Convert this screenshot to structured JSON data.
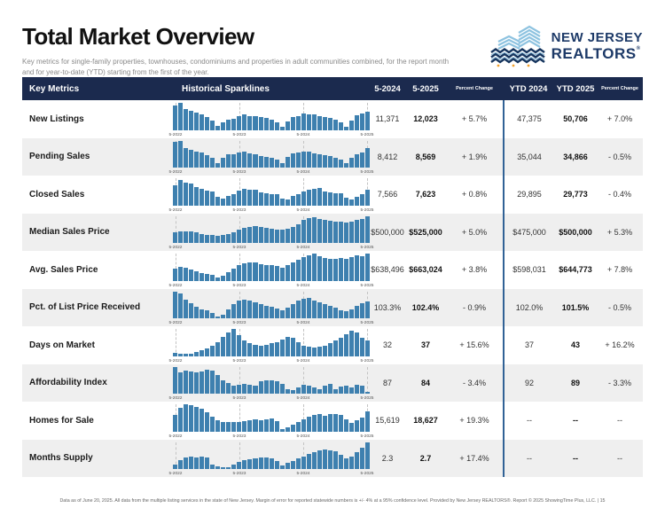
{
  "page": {
    "title": "Total Market Overview",
    "subtitle_line1": "Key metrics for single-family properties, townhouses, condominiums and properties in adult communities combined, for the report month",
    "subtitle_line2": "and for year-to-date (YTD) starting from the first of the year.",
    "footer": "Data as of June 20, 2025. All data from the multiple listing services in the state of New Jersey. Margin of error for reported statewide numbers is +/- 4% at a 95% confidence level. Provided by New Jersey REALTORS®. Report © 2025 ShowingTime Plus, LLC.  |  15"
  },
  "logo": {
    "line1": "NEW JERSEY",
    "line2": "REALTORS",
    "reg_mark": "®"
  },
  "colors": {
    "header_bg": "#1b2a4e",
    "bar_blue": "#3e80af",
    "divider_blue": "#316296",
    "row_alt": "#efefef",
    "logo_navy": "#1d3a68",
    "logo_light_blue": "#8ec3e0",
    "logo_orange": "#f2a230"
  },
  "table": {
    "headers": {
      "key_metrics": "Key Metrics",
      "sparklines": "Historical Sparklines",
      "m1": "5-2024",
      "m2": "5-2025",
      "pct1": "Percent Change",
      "y1": "YTD 2024",
      "y2": "YTD 2025",
      "pct2": "Percent Change"
    },
    "spark_axis_labels": [
      "5-2022",
      "5-2023",
      "5-2024",
      "5-2025"
    ],
    "rows": [
      {
        "metric": "New Listings",
        "m1": "11,371",
        "m2": "12,023",
        "pct1": "+ 5.7%",
        "y1": "47,375",
        "y2": "50,706",
        "pct2": "+ 7.0%",
        "spark": [
          90,
          100,
          78,
          72,
          64,
          58,
          48,
          36,
          14,
          28,
          38,
          42,
          52,
          58,
          52,
          50,
          46,
          44,
          38,
          28,
          12,
          32,
          46,
          52,
          62,
          58,
          56,
          52,
          48,
          45,
          38,
          28,
          10,
          36,
          55,
          62,
          68
        ]
      },
      {
        "metric": "Pending Sales",
        "m1": "8,412",
        "m2": "8,569",
        "pct1": "+ 1.9%",
        "y1": "35,044",
        "y2": "34,866",
        "pct2": "- 0.5%",
        "spark": [
          95,
          100,
          72,
          66,
          60,
          55,
          46,
          35,
          18,
          36,
          50,
          48,
          56,
          58,
          51,
          48,
          43,
          40,
          35,
          28,
          15,
          38,
          52,
          55,
          60,
          58,
          52,
          50,
          45,
          42,
          35,
          28,
          15,
          35,
          50,
          55,
          72
        ]
      },
      {
        "metric": "Closed Sales",
        "m1": "7,566",
        "m2": "7,623",
        "pct1": "+ 0.8%",
        "y1": "29,895",
        "y2": "29,773",
        "pct2": "- 0.4%",
        "spark": [
          75,
          92,
          85,
          80,
          66,
          60,
          55,
          50,
          30,
          25,
          35,
          40,
          55,
          60,
          56,
          58,
          48,
          45,
          42,
          40,
          25,
          22,
          35,
          42,
          52,
          58,
          62,
          65,
          52,
          48,
          45,
          45,
          28,
          22,
          32,
          42,
          58
        ]
      },
      {
        "metric": "Median Sales Price",
        "m1": "$500,000",
        "m2": "$525,000",
        "pct1": "+ 5.0%",
        "y1": "$475,000",
        "y2": "$500,000",
        "pct2": "+ 5.3%",
        "spark": [
          38,
          42,
          44,
          42,
          38,
          34,
          30,
          28,
          25,
          28,
          34,
          40,
          50,
          56,
          60,
          62,
          58,
          55,
          52,
          50,
          48,
          52,
          60,
          68,
          85,
          92,
          95,
          90,
          85,
          82,
          80,
          78,
          75,
          78,
          85,
          88,
          100
        ]
      },
      {
        "metric": "Avg. Sales Price",
        "m1": "$638,496",
        "m2": "$663,024",
        "pct1": "+ 3.8%",
        "y1": "$598,031",
        "y2": "$644,773",
        "pct2": "+ 7.8%",
        "spark": [
          45,
          50,
          46,
          40,
          34,
          28,
          25,
          22,
          12,
          18,
          30,
          44,
          58,
          64,
          66,
          68,
          60,
          58,
          56,
          54,
          48,
          56,
          66,
          76,
          88,
          94,
          100,
          90,
          85,
          82,
          80,
          84,
          82,
          88,
          92,
          90,
          100
        ]
      },
      {
        "metric": "Pct. of List Price Received",
        "m1": "103.3%",
        "m2": "102.4%",
        "pct1": "- 0.9%",
        "y1": "102.0%",
        "y2": "101.5%",
        "pct2": "- 0.5%",
        "spark": [
          100,
          92,
          70,
          55,
          42,
          34,
          28,
          20,
          6,
          14,
          32,
          52,
          64,
          70,
          66,
          58,
          52,
          47,
          42,
          36,
          30,
          40,
          54,
          66,
          72,
          76,
          66,
          58,
          52,
          45,
          38,
          30,
          25,
          32,
          45,
          55,
          62
        ]
      },
      {
        "metric": "Days on Market",
        "m1": "32",
        "m2": "37",
        "pct1": "+ 15.6%",
        "y1": "37",
        "y2": "43",
        "pct2": "+ 16.2%",
        "spark": [
          10,
          8,
          7,
          9,
          14,
          20,
          28,
          38,
          52,
          70,
          88,
          100,
          78,
          58,
          46,
          40,
          38,
          42,
          46,
          52,
          62,
          72,
          68,
          52,
          38,
          33,
          31,
          33,
          38,
          46,
          56,
          68,
          80,
          95,
          88,
          68,
          56
        ]
      },
      {
        "metric": "Affordability Index",
        "m1": "87",
        "m2": "84",
        "pct1": "- 3.4%",
        "y1": "92",
        "y2": "89",
        "pct2": "- 3.3%",
        "spark": [
          100,
          78,
          85,
          82,
          78,
          82,
          88,
          85,
          68,
          50,
          38,
          30,
          32,
          36,
          32,
          30,
          46,
          50,
          50,
          46,
          36,
          18,
          12,
          22,
          32,
          28,
          22,
          18,
          30,
          36,
          18,
          26,
          30,
          24,
          34,
          28,
          8
        ]
      },
      {
        "metric": "Homes for Sale",
        "m1": "15,619",
        "m2": "18,627",
        "pct1": "+ 19.3%",
        "y1": "--",
        "y2": "--",
        "pct2": "--",
        "spark": [
          62,
          88,
          100,
          96,
          90,
          84,
          70,
          54,
          40,
          36,
          33,
          34,
          36,
          38,
          41,
          43,
          41,
          45,
          46,
          38,
          8,
          14,
          24,
          34,
          44,
          54,
          60,
          63,
          58,
          63,
          65,
          60,
          44,
          32,
          40,
          52,
          74
        ]
      },
      {
        "metric": "Months Supply",
        "m1": "2.3",
        "m2": "2.7",
        "pct1": "+ 17.4%",
        "y1": "--",
        "y2": "--",
        "pct2": "--",
        "spark": [
          15,
          32,
          44,
          46,
          43,
          46,
          42,
          15,
          10,
          6,
          8,
          18,
          26,
          32,
          36,
          40,
          44,
          44,
          40,
          28,
          14,
          22,
          30,
          38,
          46,
          56,
          63,
          68,
          72,
          70,
          64,
          52,
          38,
          46,
          62,
          80,
          100
        ]
      }
    ]
  }
}
